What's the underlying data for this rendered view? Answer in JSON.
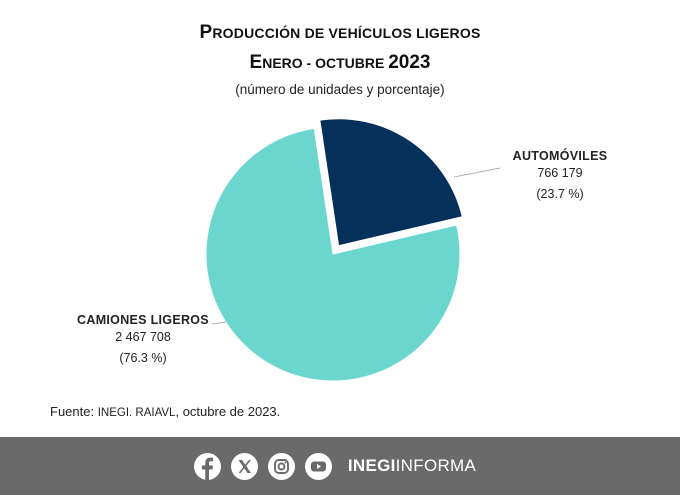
{
  "chart_data": {
    "type": "pie",
    "title_line1_initial": "P",
    "title_line1_rest": "RODUCCIÓN DE VEHÍCULOS LIGEROS",
    "title_line2_initial": "E",
    "title_line2_rest": "NERO - OCTUBRE ",
    "title_line2_year": "2023",
    "subtitle": "(número de unidades y porcentaje)",
    "slices": [
      {
        "name": "AUTOMÓVILES",
        "value": 766179,
        "value_label": "766 179",
        "percent": 23.7,
        "percent_label": "(23.7 %)",
        "color": "#04305a",
        "exploded": true
      },
      {
        "name": "CAMIONES LIGEROS",
        "value": 2467708,
        "value_label": "2 467 708",
        "percent": 76.3,
        "percent_label": "(76.3 %)",
        "color": "#6ad6ce",
        "exploded": false
      }
    ]
  },
  "source": {
    "prefix": "Fuente: ",
    "org": "INEGI. RAIAVL",
    "suffix": ", octubre de 2023."
  },
  "footer": {
    "brand_bold": "INEGI",
    "brand_rest": "INFORMA",
    "background": "#6a6a6a",
    "icons": [
      "facebook-icon",
      "x-icon",
      "instagram-icon",
      "youtube-icon"
    ]
  }
}
